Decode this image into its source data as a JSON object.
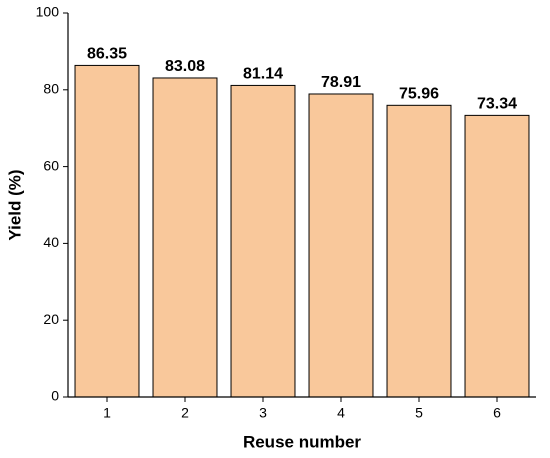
{
  "chart_data": {
    "type": "bar",
    "x_label": "Reuse number",
    "y_label": "Yield (%)",
    "categories": [
      "1",
      "2",
      "3",
      "4",
      "5",
      "6"
    ],
    "values": [
      86.35,
      83.08,
      81.14,
      78.91,
      75.96,
      73.34
    ],
    "color": "#f9c89b",
    "ylim": [
      0,
      100
    ],
    "yticks": [
      0,
      20,
      40,
      60,
      80,
      100
    ]
  }
}
